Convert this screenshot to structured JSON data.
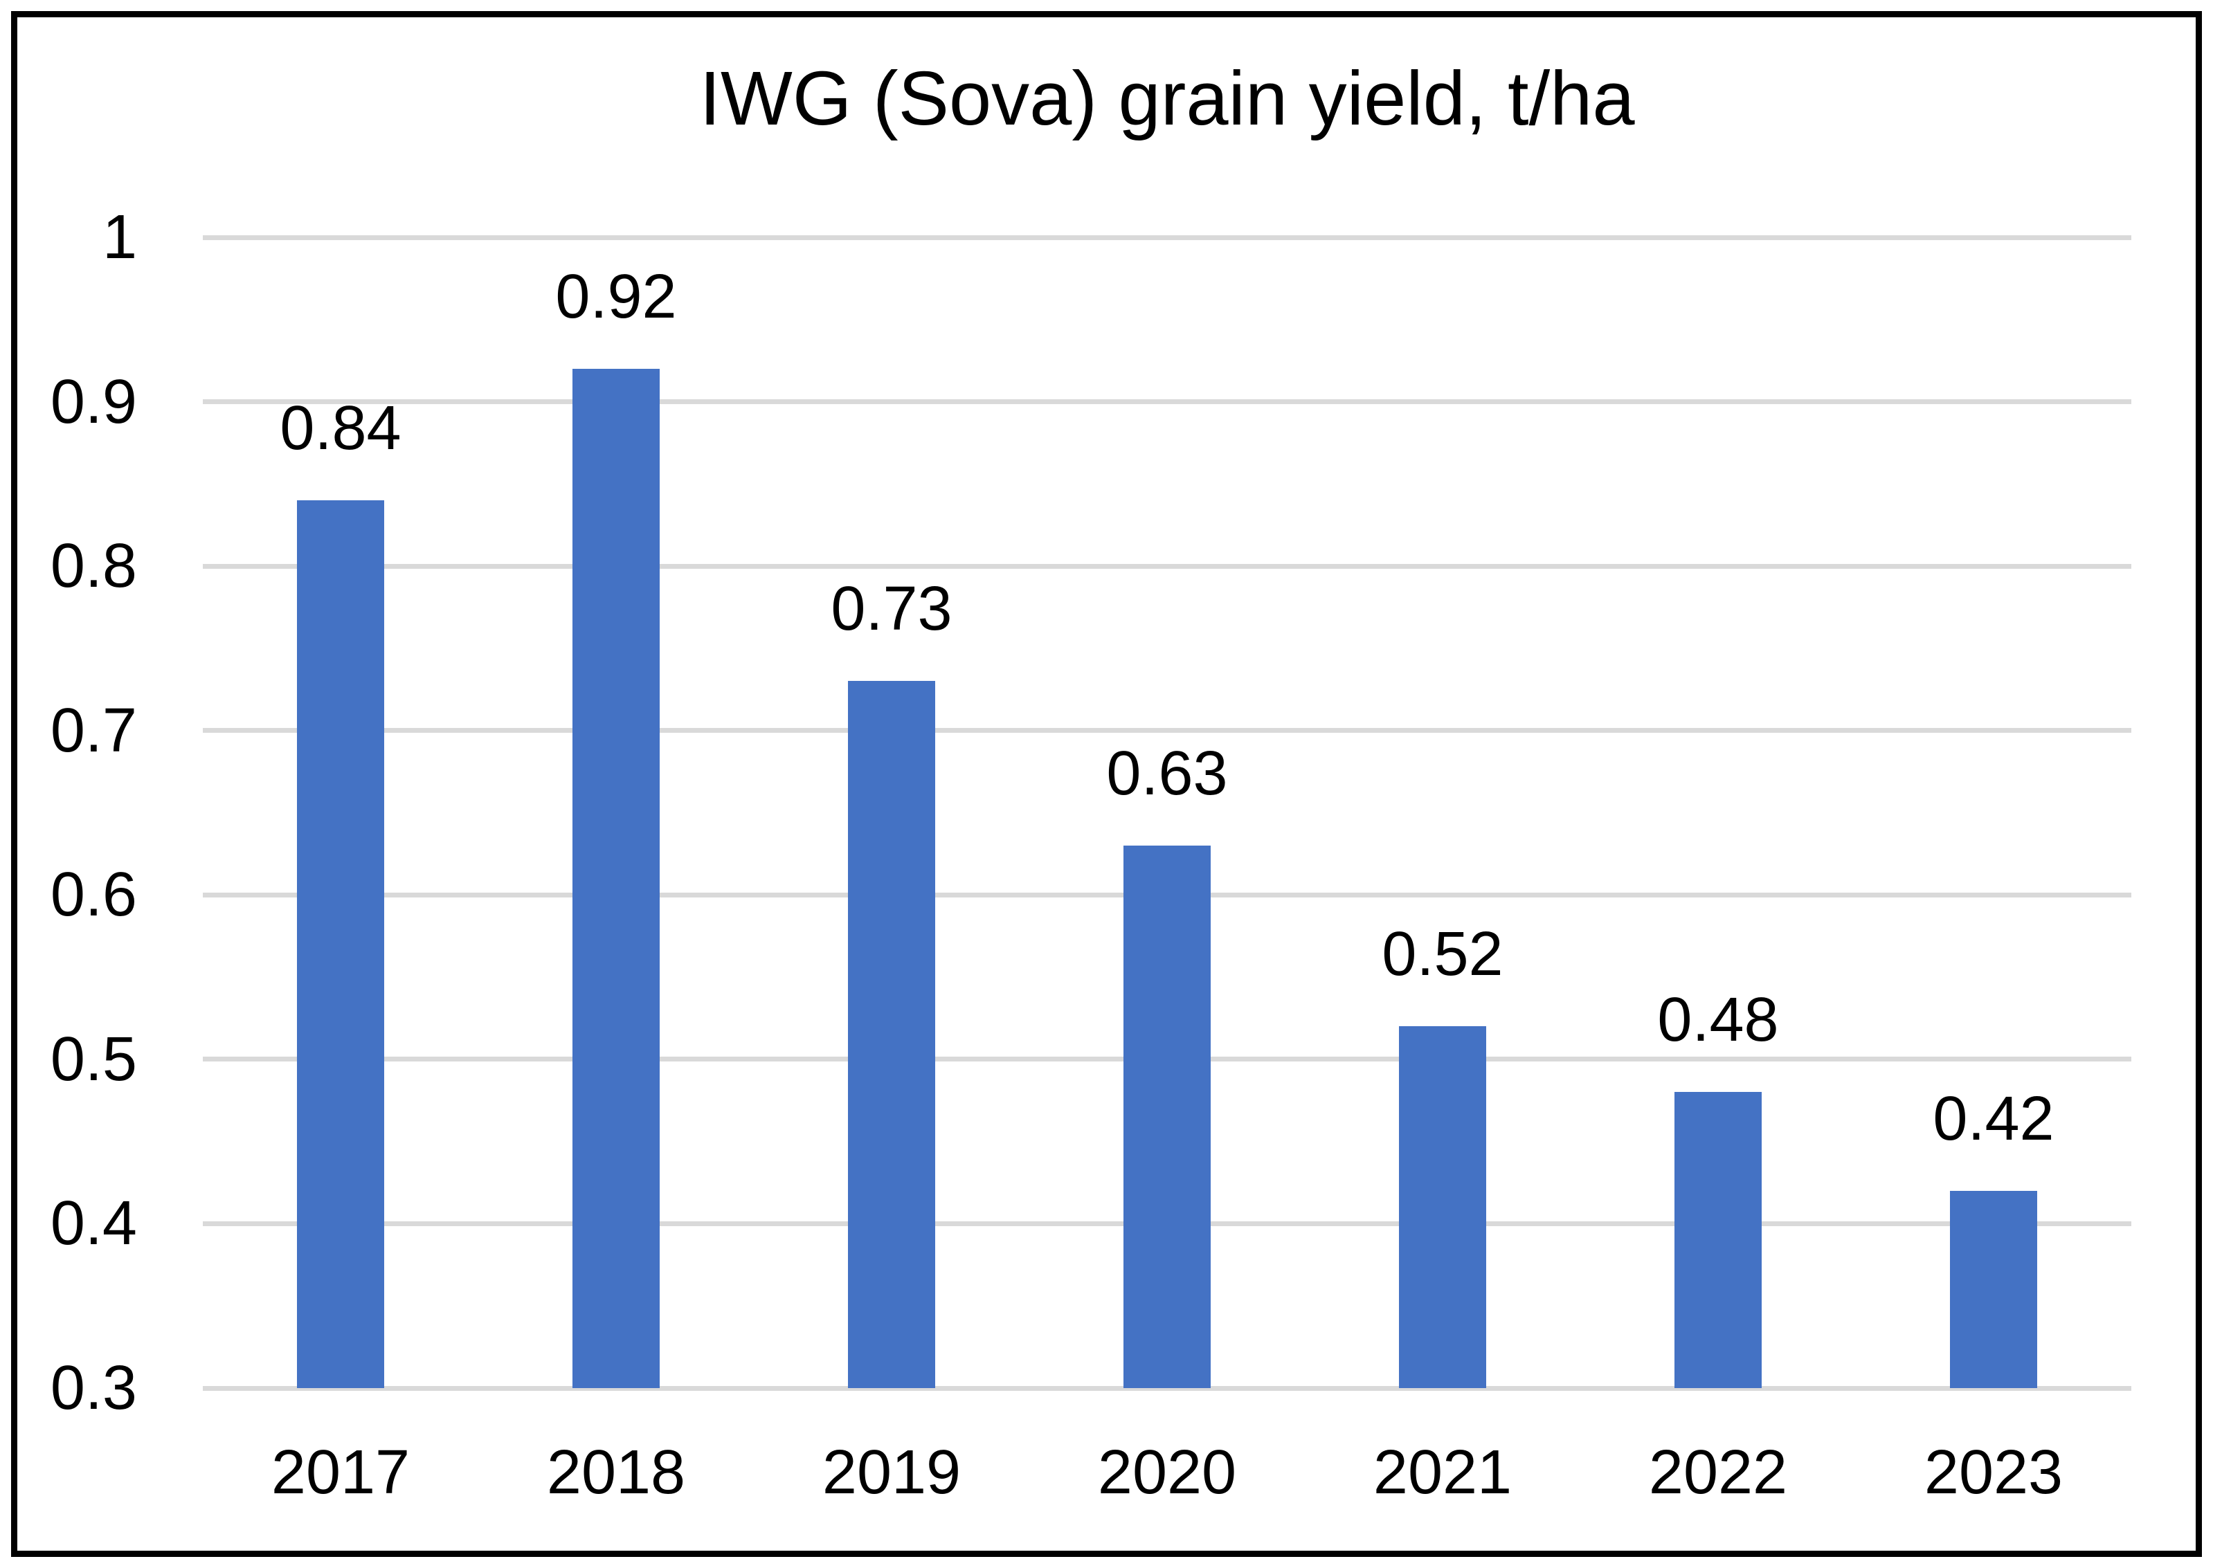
{
  "chart_data": {
    "type": "bar",
    "title": "IWG (Sova) grain yield, t/ha",
    "categories": [
      "2017",
      "2018",
      "2019",
      "2020",
      "2021",
      "2022",
      "2023"
    ],
    "values": [
      0.84,
      0.92,
      0.73,
      0.63,
      0.52,
      0.48,
      0.42
    ],
    "data_labels": [
      "0.84",
      "0.92",
      "0.73",
      "0.63",
      "0.52",
      "0.48",
      "0.42"
    ],
    "xlabel": "",
    "ylabel": "",
    "ylim": [
      0.3,
      1.0
    ],
    "ytick_interval": 0.1,
    "yticks": [
      "1",
      "0.9",
      "0.8",
      "0.7",
      "0.6",
      "0.5",
      "0.4",
      "0.3"
    ],
    "grid": "horizontal-only",
    "legend": "none",
    "bar_color": "#4472C4",
    "gridline_color": "#D9D9D9",
    "text_color": "#000000",
    "background_color": "#FFFFFF",
    "border_color": "#000000"
  }
}
